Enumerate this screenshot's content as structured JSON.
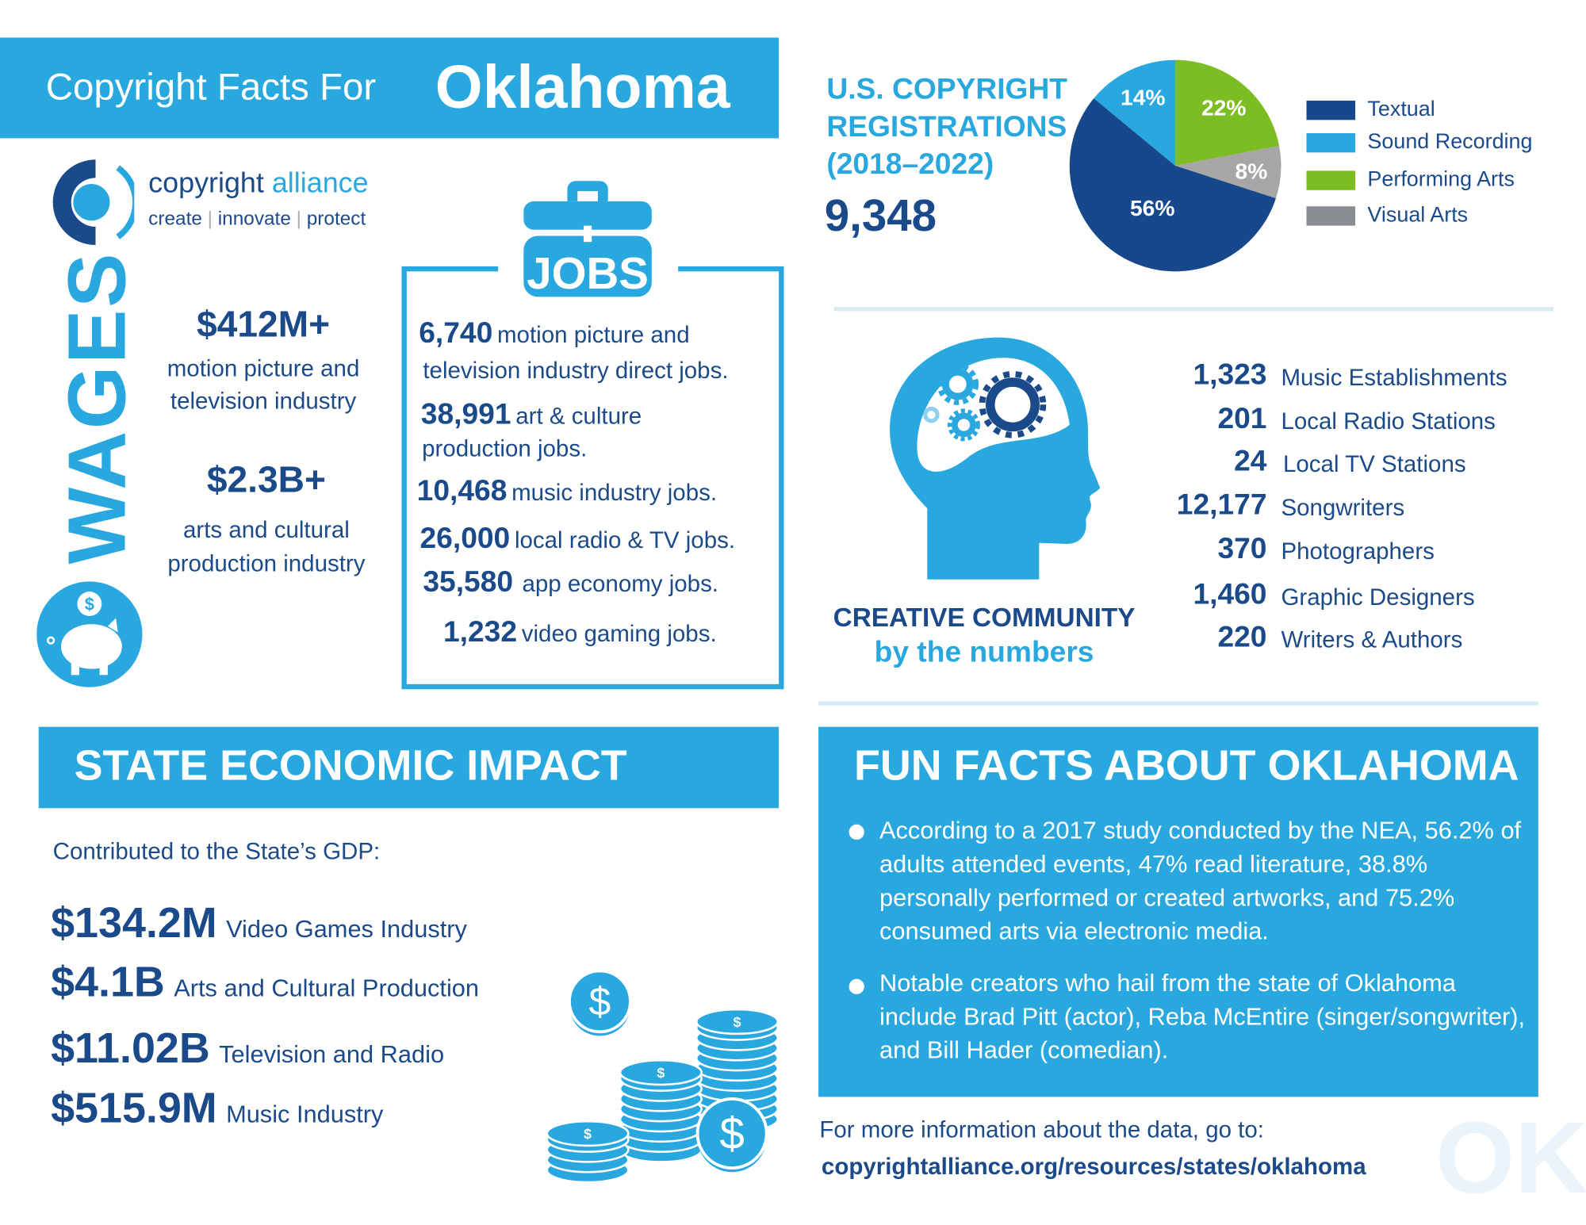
{
  "header": {
    "prefix": "Copyright Facts For",
    "state": "Oklahoma"
  },
  "logo": {
    "name_part1": "copyright",
    "name_part2": "alliance",
    "tagline": [
      "create",
      "innovate",
      "protect"
    ]
  },
  "wages": {
    "title": "WAGES",
    "items": [
      {
        "value": "$412M+",
        "line1": "motion picture and",
        "line2": "television industry"
      },
      {
        "value": "$2.3B+",
        "line1": "arts and cultural",
        "line2": "production industry"
      }
    ]
  },
  "jobs": {
    "title": "JOBS",
    "items": [
      {
        "num": "6,740",
        "text": "motion picture and",
        "text2": "television industry direct jobs."
      },
      {
        "num": "38,991",
        "text": "art & culture",
        "text2": "production jobs."
      },
      {
        "num": "10,468",
        "text": "music industry jobs."
      },
      {
        "num": "26,000",
        "text": "local radio & TV jobs."
      },
      {
        "num": "35,580",
        "text": "app economy jobs."
      },
      {
        "num": "1,232",
        "text": "video gaming jobs."
      }
    ]
  },
  "registrations": {
    "title_lines": [
      "U.S. COPYRIGHT",
      "REGISTRATIONS",
      "(2018–2022)"
    ],
    "total": "9,348"
  },
  "chart_data": {
    "type": "pie",
    "categories": [
      "Textual",
      "Sound Recording",
      "Performing Arts",
      "Visual Arts"
    ],
    "values": [
      56,
      14,
      22,
      8
    ],
    "labels": [
      "56%",
      "14%",
      "22%",
      "8%"
    ],
    "colors": [
      "#17488b",
      "#29a8e0",
      "#7cbd23",
      "#a6a6a6"
    ],
    "legend_colors": [
      "#17488b",
      "#29a8e0",
      "#7cbd23",
      "#8a8d91"
    ],
    "legend_placement": "right"
  },
  "creative": {
    "title": "CREATIVE COMMUNITY",
    "subtitle": "by the numbers",
    "items": [
      {
        "num": "1,323",
        "label": "Music Establishments"
      },
      {
        "num": "201",
        "label": "Local Radio Stations"
      },
      {
        "num": "24",
        "label": "Local TV Stations"
      },
      {
        "num": "12,177",
        "label": "Songwriters"
      },
      {
        "num": "370",
        "label": "Photographers"
      },
      {
        "num": "1,460",
        "label": "Graphic Designers"
      },
      {
        "num": "220",
        "label": "Writers & Authors"
      }
    ]
  },
  "economic": {
    "title": "STATE ECONOMIC IMPACT",
    "intro": "Contributed to the State’s GDP:",
    "items": [
      {
        "value": "$134.2M",
        "label": "Video Games Industry"
      },
      {
        "value": "$4.1B",
        "label": "Arts and Cultural Production"
      },
      {
        "value": "$11.02B",
        "label": "Television and Radio"
      },
      {
        "value": "$515.9M",
        "label": "Music Industry"
      }
    ]
  },
  "funfacts": {
    "title": "FUN FACTS ABOUT OKLAHOMA",
    "items": [
      "According to a 2017 study conducted by the NEA, 56.2% of adults attended events, 47% read literature, 38.8% personally performed or created artworks, and 75.2% consumed arts via electronic media.",
      "Notable creators who hail from the state of Oklahoma include Brad Pitt (actor), Reba McEntire (singer/songwriter), and Bill Hader (comedian)."
    ]
  },
  "footer": {
    "text": "For more information about the data, go to:",
    "url": "copyrightalliance.org/resources/states/oklahoma",
    "watermark": "OK"
  },
  "colors": {
    "light_blue": "#29a8e0",
    "navy": "#1b4a8a",
    "green": "#7cbd23",
    "gray": "#a6a6a6"
  }
}
